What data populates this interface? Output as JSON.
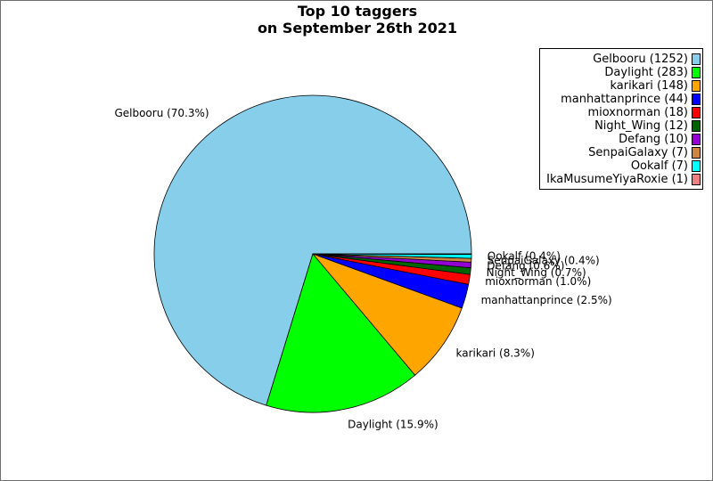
{
  "chart_data": {
    "type": "pie",
    "title_lines": [
      "Top 10 taggers",
      "on September 26th 2021"
    ],
    "slices": [
      {
        "name": "Gelbooru",
        "value": 1252,
        "pct_label": "Gelbooru (70.3%)",
        "legend_label": "Gelbooru (1252)",
        "color": "#87ceeb"
      },
      {
        "name": "Daylight",
        "value": 283,
        "pct_label": "Daylight (15.9%)",
        "legend_label": "Daylight (283)",
        "color": "#00ff00"
      },
      {
        "name": "karikari",
        "value": 148,
        "pct_label": "karikari (8.3%)",
        "legend_label": "karikari (148)",
        "color": "#ffa500"
      },
      {
        "name": "manhattanprince",
        "value": 44,
        "pct_label": "manhattanprince (2.5%)",
        "legend_label": "manhattanprince (44)",
        "color": "#0000ff"
      },
      {
        "name": "mioxnorman",
        "value": 18,
        "pct_label": "mioxnorman (1.0%)",
        "legend_label": "mioxnorman (18)",
        "color": "#ff0000"
      },
      {
        "name": "Night_Wing",
        "value": 12,
        "pct_label": "Night_Wing (0.7%)",
        "legend_label": "Night_Wing (12)",
        "color": "#006400"
      },
      {
        "name": "Defang",
        "value": 10,
        "pct_label": "Defang (0.6%)",
        "legend_label": "Defang (10)",
        "color": "#9400d3"
      },
      {
        "name": "SenpaiGalaxy",
        "value": 7,
        "pct_label": "SenpaiGalaxy (0.4%)",
        "legend_label": "SenpaiGalaxy (7)",
        "color": "#cd853f"
      },
      {
        "name": "Ookalf",
        "value": 7,
        "pct_label": "Ookalf (0.4%)",
        "legend_label": "Ookalf (7)",
        "color": "#00ffff"
      },
      {
        "name": "IkaMusumeYiyaRoxie",
        "value": 1,
        "pct_label": "",
        "legend_label": "IkaMusumeYiyaRoxie (1)",
        "color": "#f08080"
      }
    ],
    "legend_position": "top-right"
  }
}
